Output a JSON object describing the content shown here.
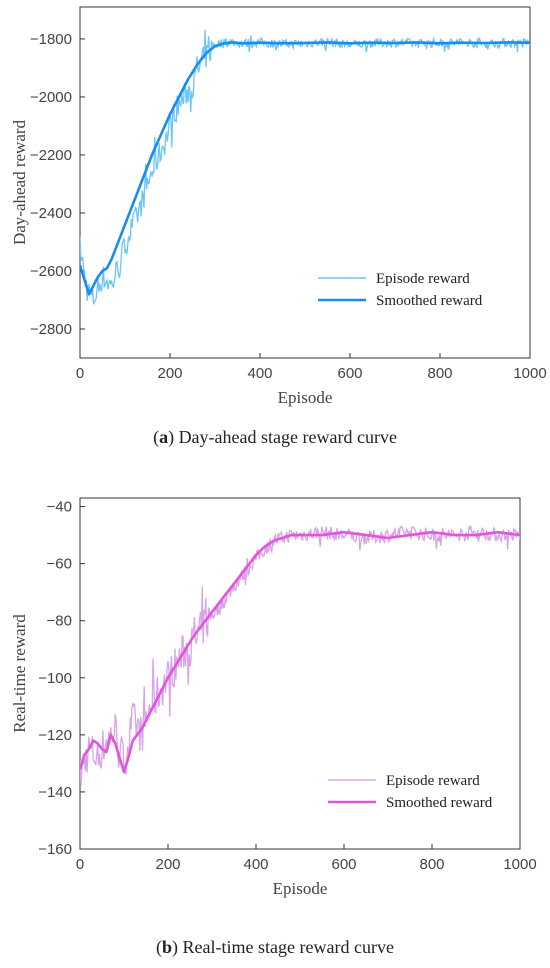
{
  "figures": [
    {
      "caption_letter": "a",
      "caption_text": "Day-ahead stage reward curve"
    },
    {
      "caption_letter": "b",
      "caption_text": "Real-time stage reward curve"
    }
  ],
  "chart_data": [
    {
      "type": "line",
      "title": "",
      "xlabel": "Episode",
      "ylabel": "Day-ahead reward",
      "xlim": [
        0,
        1000
      ],
      "ylim": [
        -2900,
        -1690
      ],
      "xticks": [
        0,
        200,
        400,
        600,
        800,
        1000
      ],
      "yticks": [
        -2800,
        -2600,
        -2400,
        -2200,
        -2000,
        -1800
      ],
      "grid": false,
      "legend_position": "lower-right",
      "series": [
        {
          "name": "Episode reward",
          "color": "#6cc5f7",
          "x": [
            0,
            15,
            30,
            50,
            70,
            90,
            110,
            130,
            150,
            170,
            190,
            210,
            230,
            250,
            270,
            290,
            300,
            330,
            360,
            400,
            450,
            500,
            550,
            600,
            650,
            700,
            750,
            800,
            850,
            900,
            950,
            1000
          ],
          "values": [
            -2520,
            -2660,
            -2700,
            -2620,
            -2650,
            -2560,
            -2470,
            -2400,
            -2300,
            -2220,
            -2150,
            -2050,
            -2000,
            -1960,
            -1880,
            -1840,
            -1820,
            -1810,
            -1815,
            -1812,
            -1818,
            -1815,
            -1810,
            -1820,
            -1815,
            -1812,
            -1816,
            -1814,
            -1812,
            -1816,
            -1813,
            -1815
          ]
        },
        {
          "name": "Smoothed reward",
          "color": "#1a8cf0",
          "x": [
            0,
            10,
            20,
            30,
            40,
            50,
            60,
            70,
            80,
            90,
            100,
            120,
            140,
            160,
            180,
            200,
            220,
            240,
            260,
            280,
            300,
            320,
            340,
            360,
            400,
            450,
            500,
            550,
            600,
            650,
            700,
            750,
            800,
            850,
            900,
            950,
            1000
          ],
          "values": [
            -2580,
            -2630,
            -2680,
            -2650,
            -2620,
            -2600,
            -2590,
            -2560,
            -2520,
            -2480,
            -2440,
            -2360,
            -2280,
            -2200,
            -2130,
            -2060,
            -2000,
            -1940,
            -1890,
            -1850,
            -1825,
            -1815,
            -1812,
            -1815,
            -1813,
            -1815,
            -1814,
            -1812,
            -1815,
            -1813,
            -1814,
            -1812,
            -1815,
            -1813,
            -1814,
            -1812,
            -1813
          ]
        }
      ]
    },
    {
      "type": "line",
      "title": "",
      "xlabel": "Episode",
      "ylabel": "Real-time reward",
      "xlim": [
        0,
        1000
      ],
      "ylim": [
        -160,
        -37
      ],
      "xticks": [
        0,
        200,
        400,
        600,
        800,
        1000
      ],
      "yticks": [
        -160,
        -140,
        -120,
        -100,
        -80,
        -60,
        -40
      ],
      "grid": false,
      "legend_position": "lower-right",
      "series": [
        {
          "name": "Episode reward",
          "color": "#d9a3ea",
          "x": [
            0,
            20,
            40,
            60,
            80,
            100,
            120,
            140,
            160,
            180,
            200,
            220,
            240,
            260,
            280,
            300,
            320,
            340,
            360,
            380,
            400,
            420,
            440,
            460,
            480,
            500,
            550,
            600,
            650,
            700,
            750,
            800,
            850,
            900,
            950,
            1000
          ],
          "values": [
            -135,
            -125,
            -128,
            -122,
            -118,
            -130,
            -115,
            -120,
            -110,
            -105,
            -100,
            -95,
            -90,
            -88,
            -82,
            -78,
            -75,
            -70,
            -66,
            -62,
            -58,
            -55,
            -52,
            -51,
            -50,
            -50,
            -49,
            -50,
            -51,
            -50,
            -49,
            -50,
            -50,
            -49,
            -50,
            -50
          ]
        },
        {
          "name": "Smoothed reward",
          "color": "#e056d8",
          "x": [
            0,
            10,
            20,
            30,
            40,
            50,
            60,
            70,
            80,
            90,
            100,
            110,
            120,
            140,
            160,
            180,
            200,
            220,
            240,
            260,
            280,
            300,
            320,
            340,
            360,
            380,
            400,
            420,
            440,
            460,
            480,
            500,
            550,
            600,
            650,
            700,
            750,
            800,
            850,
            900,
            950,
            1000
          ],
          "values": [
            -132,
            -127,
            -125,
            -122,
            -123,
            -125,
            -126,
            -120,
            -123,
            -128,
            -133,
            -128,
            -122,
            -118,
            -112,
            -106,
            -100,
            -95,
            -90,
            -85,
            -81,
            -77,
            -73,
            -69,
            -65,
            -61,
            -57,
            -54,
            -52,
            -51,
            -50,
            -50,
            -50,
            -49,
            -50,
            -51,
            -50,
            -49,
            -50,
            -50,
            -49,
            -50
          ]
        }
      ]
    }
  ]
}
